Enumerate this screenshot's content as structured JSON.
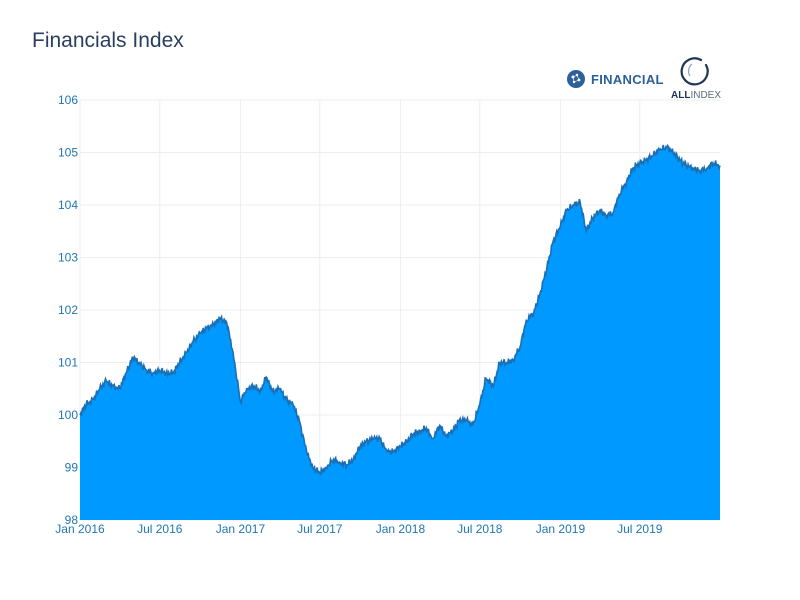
{
  "title": "Financials Index",
  "logos": {
    "financial_text": "FINANCIAL",
    "allindex_text_bold": "ALL",
    "allindex_text_light": "INDEX"
  },
  "colors": {
    "fill": "#0099ff",
    "line": "#1a6fb5",
    "tick_text": "#1f77b4",
    "grid": "#eeeeee",
    "title": "#2a3f5f"
  },
  "chart_data": {
    "type": "area",
    "title": "Financials Index",
    "xlabel": "",
    "ylabel": "",
    "ylim": [
      98,
      106
    ],
    "xlim": [
      "2016-01-01",
      "2019-12-31"
    ],
    "grid": true,
    "legend": "none",
    "x_ticks": [
      "Jan 2016",
      "Jul 2016",
      "Jan 2017",
      "Jul 2017",
      "Jan 2018",
      "Jul 2018",
      "Jan 2019",
      "Jul 2019"
    ],
    "y_ticks": [
      "98",
      "99",
      "100",
      "101",
      "102",
      "103",
      "104",
      "105",
      "106"
    ],
    "series": [
      {
        "x": [
          "2016-01-01",
          "2016-01-15",
          "2016-02-01",
          "2016-02-15",
          "2016-03-01",
          "2016-03-15",
          "2016-04-01",
          "2016-04-15",
          "2016-05-01",
          "2016-05-15",
          "2016-06-01",
          "2016-06-15",
          "2016-07-01",
          "2016-07-15",
          "2016-08-01",
          "2016-08-15",
          "2016-09-01",
          "2016-09-15",
          "2016-10-01",
          "2016-10-15",
          "2016-11-01",
          "2016-11-15",
          "2016-12-01",
          "2016-12-15",
          "2017-01-01",
          "2017-01-15",
          "2017-02-01",
          "2017-02-15",
          "2017-03-01",
          "2017-03-15",
          "2017-04-01",
          "2017-04-15",
          "2017-05-01",
          "2017-05-15",
          "2017-06-01",
          "2017-06-15",
          "2017-07-01",
          "2017-07-15",
          "2017-08-01",
          "2017-08-15",
          "2017-09-01",
          "2017-09-15",
          "2017-10-01",
          "2017-10-15",
          "2017-11-01",
          "2017-11-15",
          "2017-12-01",
          "2017-12-15",
          "2018-01-01",
          "2018-01-15",
          "2018-02-01",
          "2018-02-15",
          "2018-03-01",
          "2018-03-15",
          "2018-04-01",
          "2018-04-15",
          "2018-05-01",
          "2018-05-15",
          "2018-06-01",
          "2018-06-15",
          "2018-07-01",
          "2018-07-15",
          "2018-08-01",
          "2018-08-15",
          "2018-09-01",
          "2018-09-15",
          "2018-10-01",
          "2018-10-15",
          "2018-11-01",
          "2018-11-15",
          "2018-12-01",
          "2018-12-15",
          "2019-01-01",
          "2019-01-15",
          "2019-02-01",
          "2019-02-15",
          "2019-03-01",
          "2019-03-15",
          "2019-04-01",
          "2019-04-15",
          "2019-05-01",
          "2019-05-15",
          "2019-06-01",
          "2019-06-15",
          "2019-07-01",
          "2019-07-15",
          "2019-08-01",
          "2019-08-15",
          "2019-09-01",
          "2019-09-15",
          "2019-10-01",
          "2019-10-15",
          "2019-11-01",
          "2019-11-15",
          "2019-12-01",
          "2019-12-15",
          "2019-12-31"
        ],
        "values": [
          100.0,
          100.2,
          100.3,
          100.5,
          100.65,
          100.55,
          100.5,
          100.8,
          101.1,
          101.0,
          100.85,
          100.8,
          100.85,
          100.8,
          100.8,
          101.0,
          101.2,
          101.4,
          101.55,
          101.65,
          101.72,
          101.85,
          101.75,
          101.2,
          100.25,
          100.5,
          100.55,
          100.45,
          100.72,
          100.45,
          100.5,
          100.3,
          100.2,
          99.9,
          99.3,
          99.0,
          98.9,
          99.0,
          99.15,
          99.1,
          99.05,
          99.15,
          99.4,
          99.5,
          99.55,
          99.55,
          99.3,
          99.3,
          99.4,
          99.5,
          99.65,
          99.7,
          99.75,
          99.55,
          99.8,
          99.6,
          99.7,
          99.9,
          99.9,
          99.8,
          100.2,
          100.7,
          100.55,
          101.0,
          101.0,
          101.05,
          101.3,
          101.8,
          101.95,
          102.3,
          102.8,
          103.3,
          103.6,
          103.9,
          104.0,
          104.05,
          103.5,
          103.75,
          103.9,
          103.8,
          103.85,
          104.2,
          104.45,
          104.7,
          104.8,
          104.85,
          104.95,
          105.05,
          105.1,
          105.0,
          104.85,
          104.75,
          104.7,
          104.65,
          104.7,
          104.8,
          104.75
        ]
      }
    ]
  }
}
